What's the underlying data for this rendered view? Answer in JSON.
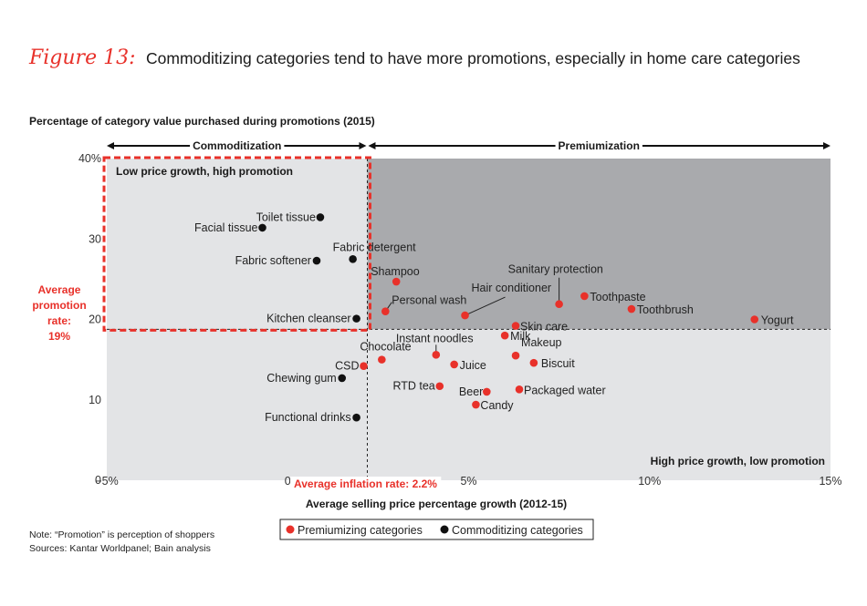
{
  "figure_label": "Figure 13:",
  "title": "Commoditizing categories tend to have more promotions, especially in home care categories",
  "note": "Note: “Promotion” is perception of shoppers",
  "sources": "Sources: Kantar Worldpanel; Bain analysis",
  "colors": {
    "premiumizing": "#e8312a",
    "commoditizing": "#111111",
    "dark_region": "#a9aaad",
    "light_region": "#e3e4e6",
    "accent": "#e8312a"
  },
  "chart_data": {
    "type": "scatter",
    "ylabel": "Percentage of category value purchased during promotions (2015)",
    "xlabel": "Average selling price percentage growth (2012-15)",
    "xlim": [
      -5,
      15
    ],
    "ylim": [
      0,
      40
    ],
    "x_ticks": [
      "−5%",
      "0",
      "5%",
      "10%",
      "15%"
    ],
    "x_tick_values": [
      -5,
      0,
      5,
      10,
      15
    ],
    "y_ticks": [
      "0",
      "10",
      "20",
      "30",
      "40%"
    ],
    "y_tick_values": [
      0,
      10,
      20,
      30,
      40
    ],
    "avg_promotion_rate": 19,
    "avg_promotion_label": [
      "Average",
      "promotion",
      "rate:",
      "19%"
    ],
    "avg_inflation_rate": 2.2,
    "avg_inflation_label": "Average inflation rate: 2.2%",
    "commoditization_label": "Commoditization",
    "premiumization_label": "Premiumization",
    "quadrant_top_left_label": "Low price growth, high promotion",
    "quadrant_bottom_right_label": "High price growth, low promotion",
    "legend": [
      {
        "key": "premiumizing",
        "label": "Premiumizing categories"
      },
      {
        "key": "commoditizing",
        "label": "Commoditizing categories"
      }
    ],
    "series": [
      {
        "name": "Premiumizing categories",
        "key": "premiumizing",
        "points": [
          {
            "label": "CSD",
            "x": 2.1,
            "y": 14.2
          },
          {
            "label": "Chocolate",
            "x": 2.6,
            "y": 15.0
          },
          {
            "label": "Shampoo",
            "x": 3.0,
            "y": 24.7
          },
          {
            "label": "Personal wash",
            "x": 2.7,
            "y": 21.0
          },
          {
            "label": "Instant noodles",
            "x": 4.1,
            "y": 15.6
          },
          {
            "label": "Juice",
            "x": 4.6,
            "y": 14.4
          },
          {
            "label": "RTD tea",
            "x": 4.2,
            "y": 11.7
          },
          {
            "label": "Hair conditioner",
            "x": 4.9,
            "y": 20.5
          },
          {
            "label": "Beer",
            "x": 5.5,
            "y": 11.0
          },
          {
            "label": "Candy",
            "x": 5.2,
            "y": 9.4
          },
          {
            "label": "Milk",
            "x": 6.0,
            "y": 18.0
          },
          {
            "label": "Skin care",
            "x": 6.3,
            "y": 19.2
          },
          {
            "label": "Makeup",
            "x": 6.3,
            "y": 15.5
          },
          {
            "label": "Biscuit",
            "x": 6.8,
            "y": 14.6
          },
          {
            "label": "Packaged water",
            "x": 6.4,
            "y": 11.3
          },
          {
            "label": "Sanitary protection",
            "x": 7.5,
            "y": 21.9
          },
          {
            "label": "Toothpaste",
            "x": 8.2,
            "y": 22.9
          },
          {
            "label": "Toothbrush",
            "x": 9.5,
            "y": 21.3
          },
          {
            "label": "Yogurt",
            "x": 12.9,
            "y": 20.0
          }
        ]
      },
      {
        "name": "Commoditizing categories",
        "key": "commoditizing",
        "points": [
          {
            "label": "Toilet tissue",
            "x": 0.9,
            "y": 32.7
          },
          {
            "label": "Facial tissue",
            "x": -0.7,
            "y": 31.4
          },
          {
            "label": "Fabric softener",
            "x": 0.8,
            "y": 27.3
          },
          {
            "label": "Fabric detergent",
            "x": 1.8,
            "y": 27.5
          },
          {
            "label": "Kitchen cleanser",
            "x": 1.9,
            "y": 20.1
          },
          {
            "label": "Chewing gum",
            "x": 1.5,
            "y": 12.7
          },
          {
            "label": "Functional drinks",
            "x": 1.9,
            "y": 7.8
          }
        ]
      }
    ]
  }
}
